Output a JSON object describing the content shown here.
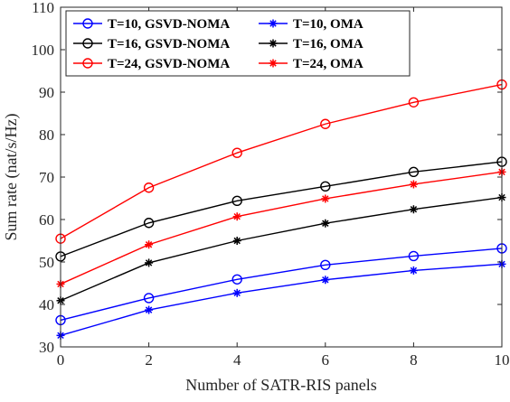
{
  "chart_data": {
    "type": "line",
    "title": "",
    "xlabel": "Number of SATR-RIS panels",
    "ylabel": "Sum rate (nat/s/Hz)",
    "xlim": [
      0,
      10
    ],
    "ylim": [
      30,
      110
    ],
    "xticks": [
      0,
      2,
      4,
      6,
      8,
      10
    ],
    "yticks": [
      30,
      40,
      50,
      60,
      70,
      80,
      90,
      100,
      110
    ],
    "grid": false,
    "legend_position": "top-left",
    "x": [
      0,
      2,
      4,
      6,
      8,
      10
    ],
    "series": [
      {
        "name": "T=10, GSVD-NOMA",
        "color": "#0000ff",
        "marker": "circle",
        "values": [
          36.3,
          41.5,
          45.9,
          49.3,
          51.4,
          53.2
        ]
      },
      {
        "name": "T=10, OMA",
        "color": "#0000ff",
        "marker": "asterisk",
        "values": [
          32.7,
          38.7,
          42.7,
          45.8,
          48.0,
          49.5
        ]
      },
      {
        "name": "T=16, GSVD-NOMA",
        "color": "#000000",
        "marker": "circle",
        "values": [
          51.3,
          59.2,
          64.4,
          67.8,
          71.2,
          73.6
        ]
      },
      {
        "name": "T=16, OMA",
        "color": "#000000",
        "marker": "asterisk",
        "values": [
          40.9,
          49.8,
          55.0,
          59.1,
          62.4,
          65.2
        ]
      },
      {
        "name": "T=24, GSVD-NOMA",
        "color": "#ff0000",
        "marker": "circle",
        "values": [
          55.5,
          67.5,
          75.7,
          82.5,
          87.6,
          91.8
        ]
      },
      {
        "name": "T=24, OMA",
        "color": "#ff0000",
        "marker": "asterisk",
        "values": [
          44.8,
          54.1,
          60.7,
          64.9,
          68.3,
          71.2
        ]
      }
    ]
  }
}
